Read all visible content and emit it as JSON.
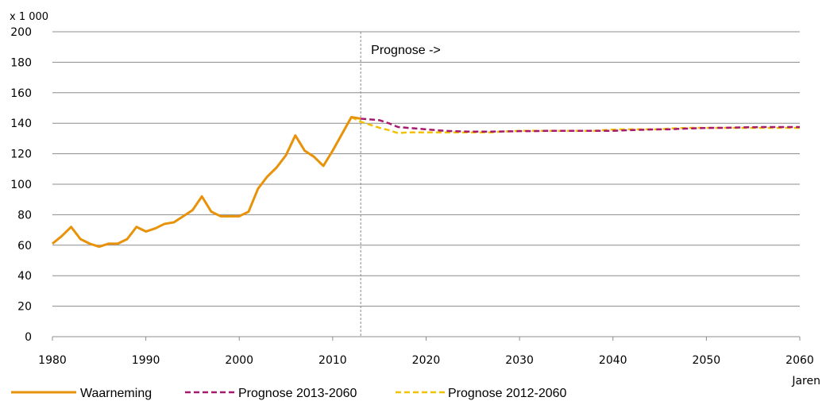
{
  "chart_data": {
    "type": "line",
    "title": "",
    "y_unit_label": "x 1 000",
    "xlabel": "Jaren",
    "ylabel": "",
    "xlim": [
      1980,
      2060
    ],
    "ylim": [
      0,
      200
    ],
    "x_ticks": [
      1980,
      1990,
      2000,
      2010,
      2020,
      2030,
      2040,
      2050,
      2060
    ],
    "y_ticks": [
      0,
      20,
      40,
      60,
      80,
      100,
      120,
      140,
      160,
      180,
      200
    ],
    "grid": "horizontal",
    "annotation": {
      "x": 2013,
      "label": "Prognose ->"
    },
    "legend_position": "bottom",
    "series": [
      {
        "name": "Waarneming",
        "color": "#e8920a",
        "style": "solid",
        "x": [
          1980,
          1981,
          1982,
          1983,
          1984,
          1985,
          1986,
          1987,
          1988,
          1989,
          1990,
          1991,
          1992,
          1993,
          1994,
          1995,
          1996,
          1997,
          1998,
          1999,
          2000,
          2001,
          2002,
          2003,
          2004,
          2005,
          2006,
          2007,
          2008,
          2009,
          2010,
          2011,
          2012,
          2013
        ],
        "y": [
          61,
          66,
          72,
          64,
          61,
          59,
          61,
          61,
          64,
          72,
          69,
          71,
          74,
          75,
          79,
          83,
          92,
          82,
          79,
          79,
          79,
          82,
          97,
          105,
          111,
          119,
          132,
          122,
          118,
          112,
          122,
          133,
          144,
          143
        ]
      },
      {
        "name": "Prognose 2013-2060",
        "color": "#a6196e",
        "style": "dashed",
        "x": [
          2013,
          2014,
          2015,
          2016,
          2017,
          2018,
          2019,
          2020,
          2021,
          2022,
          2023,
          2024,
          2025,
          2026,
          2027,
          2028,
          2029,
          2030,
          2031,
          2032,
          2033,
          2034,
          2035,
          2036,
          2037,
          2038,
          2039,
          2040,
          2041,
          2042,
          2043,
          2044,
          2045,
          2046,
          2047,
          2048,
          2049,
          2050,
          2051,
          2052,
          2053,
          2054,
          2055,
          2056,
          2057,
          2058,
          2059,
          2060
        ],
        "y": [
          143,
          142.5,
          142,
          140,
          137.5,
          137,
          136.5,
          136,
          135.5,
          135,
          134.8,
          134.6,
          134.5,
          134.5,
          134.5,
          134.6,
          134.7,
          134.8,
          134.8,
          134.9,
          135,
          135,
          135,
          135,
          135,
          135,
          135,
          135,
          135.3,
          135.5,
          135.7,
          135.9,
          136,
          136,
          136.3,
          136.5,
          136.7,
          136.9,
          137,
          137,
          137.2,
          137.3,
          137.4,
          137.5,
          137.5,
          137.5,
          137.5,
          137.5
        ]
      },
      {
        "name": "Prognose 2012-2060",
        "color": "#f2c200",
        "style": "dashed",
        "x": [
          2012,
          2013,
          2014,
          2015,
          2016,
          2017,
          2018,
          2019,
          2020,
          2021,
          2022,
          2023,
          2024,
          2025,
          2026,
          2027,
          2028,
          2029,
          2030,
          2031,
          2032,
          2033,
          2034,
          2035,
          2036,
          2037,
          2038,
          2039,
          2040,
          2041,
          2042,
          2043,
          2044,
          2045,
          2046,
          2047,
          2048,
          2049,
          2050,
          2051,
          2052,
          2053,
          2054,
          2055,
          2056,
          2057,
          2058,
          2059,
          2060
        ],
        "y": [
          144,
          141,
          139,
          137,
          135.5,
          133.5,
          134,
          134,
          134,
          134,
          134,
          134,
          134,
          134,
          134,
          134,
          134.5,
          134.7,
          135,
          135,
          135,
          135,
          135,
          135,
          135,
          135,
          135,
          135.5,
          135.8,
          136,
          136,
          136,
          136,
          136,
          136.5,
          136.7,
          137,
          137,
          137,
          137,
          137,
          137,
          137,
          137,
          137,
          137,
          137,
          137,
          137
        ]
      }
    ]
  }
}
